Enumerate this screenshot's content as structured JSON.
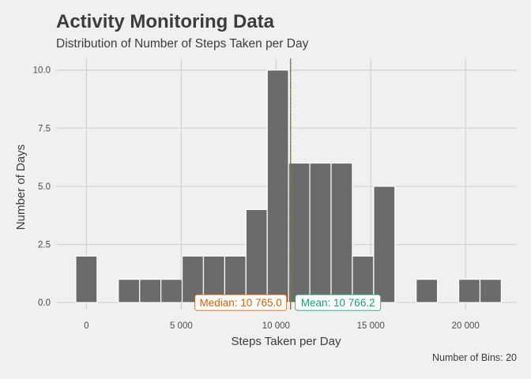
{
  "chart_data": {
    "type": "bar",
    "title": "Activity Monitoring Data",
    "subtitle": "Distribution of Number of Steps Taken per Day",
    "xlabel": "Steps Taken per Day",
    "ylabel": "Number of Days",
    "caption": "Number of Bins: 20",
    "xlim": [
      -1600,
      22700
    ],
    "ylim": [
      -0.3,
      10.5
    ],
    "x_ticks": [
      0,
      5000,
      10000,
      15000,
      20000
    ],
    "x_tick_labels": [
      "0",
      "5 000",
      "10 000",
      "15 000",
      "20 000"
    ],
    "y_ticks": [
      0,
      2.5,
      5,
      7.5,
      10
    ],
    "y_tick_labels": [
      "0.0",
      "2.5",
      "5.0",
      "7.5",
      "10.0"
    ],
    "bin_width": 1122.2,
    "bins": [
      {
        "x": 0,
        "count": 2
      },
      {
        "x": 2244.4,
        "count": 1
      },
      {
        "x": 3366.6,
        "count": 1
      },
      {
        "x": 4488.8,
        "count": 1
      },
      {
        "x": 5611.0,
        "count": 2
      },
      {
        "x": 6733.2,
        "count": 2
      },
      {
        "x": 7855.4,
        "count": 2
      },
      {
        "x": 8977.6,
        "count": 4
      },
      {
        "x": 10099.8,
        "count": 10
      },
      {
        "x": 11222.0,
        "count": 6
      },
      {
        "x": 12344.2,
        "count": 6
      },
      {
        "x": 13466.4,
        "count": 6
      },
      {
        "x": 14588.6,
        "count": 2
      },
      {
        "x": 15710.8,
        "count": 5
      },
      {
        "x": 17955.2,
        "count": 1
      },
      {
        "x": 20199.6,
        "count": 1
      },
      {
        "x": 21321.8,
        "count": 1
      }
    ],
    "median": {
      "value": 10765,
      "label": "Median: 10 765.0",
      "color": "#d95f02"
    },
    "mean": {
      "value": 10766.2,
      "label": "Mean: 10 766.2",
      "color": "#1b9e77"
    },
    "bar_color": "#6b6b6b",
    "grid": true
  }
}
